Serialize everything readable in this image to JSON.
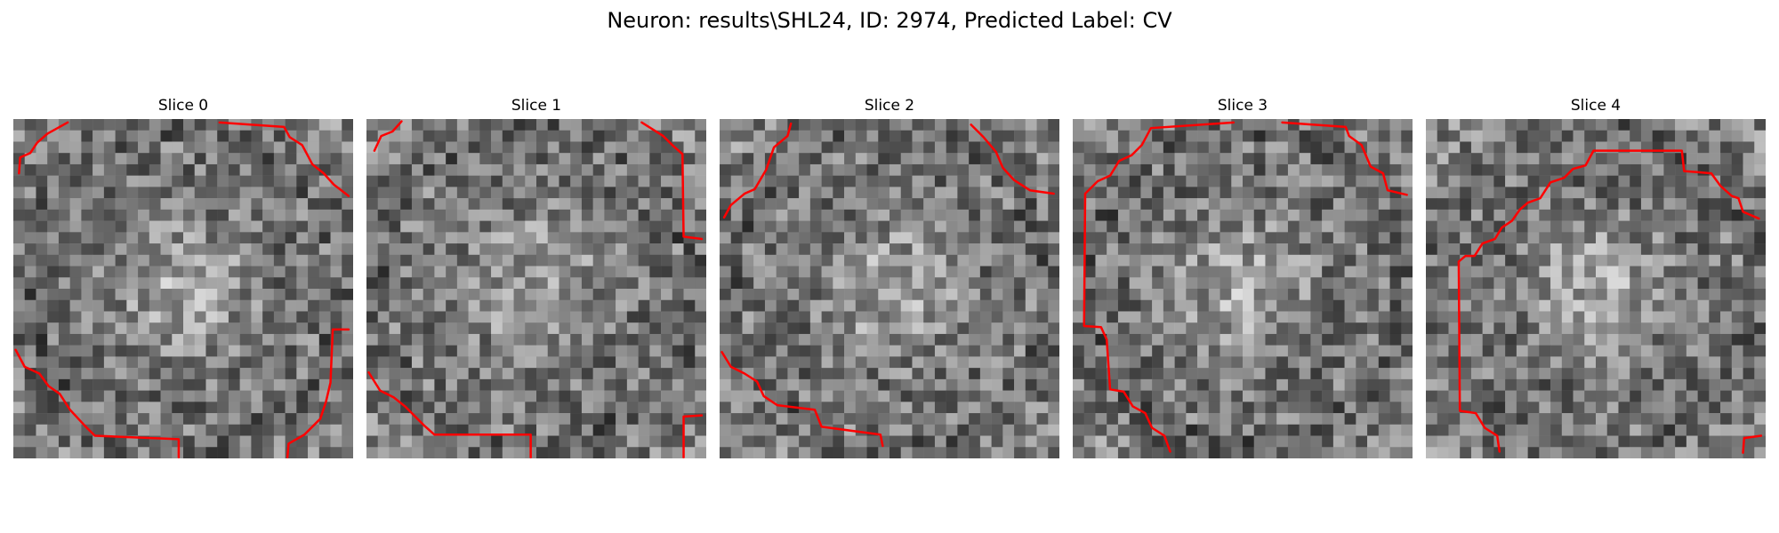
{
  "figure": {
    "title": "Neuron: results\\SHL24, ID: 2974, Predicted Label: CV",
    "contour_color": "#ff0000"
  },
  "panels": [
    {
      "title": "Slice 0"
    },
    {
      "title": "Slice 1"
    },
    {
      "title": "Slice 2"
    },
    {
      "title": "Slice 3"
    },
    {
      "title": "Slice 4"
    }
  ]
}
